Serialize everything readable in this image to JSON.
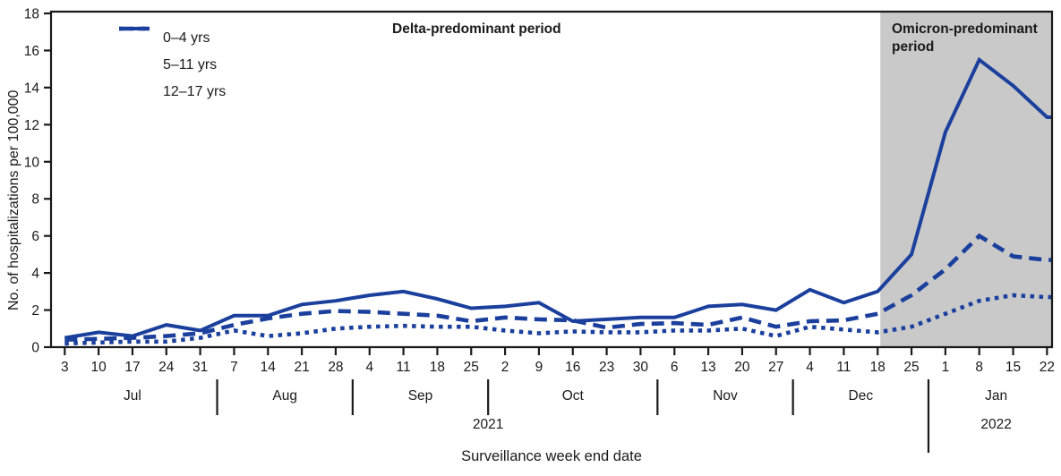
{
  "figure": {
    "y_axis_title": "No. of hospitalizations per 100,000",
    "x_axis_title": "Surveillance week end date",
    "annotations": {
      "delta": "Delta-predominant period",
      "omicron": "Omicron-predominant period"
    },
    "colors": {
      "line_blue": "#1b3f9c",
      "omicron_shade": "#c9c9c9",
      "axis_black": "#1a1a1a",
      "background": "#ffffff"
    }
  },
  "chart_data": {
    "type": "line",
    "title": "",
    "xlabel": "Surveillance week end date",
    "ylabel": "No. of hospitalizations per 100,000",
    "ylim": [
      0,
      18
    ],
    "y_ticks": [
      0,
      2,
      4,
      6,
      8,
      10,
      12,
      14,
      16,
      18
    ],
    "grid": false,
    "legend_position": "top-left",
    "x_tick_labels": [
      "3",
      "10",
      "17",
      "24",
      "31",
      "7",
      "14",
      "21",
      "28",
      "4",
      "11",
      "18",
      "25",
      "2",
      "9",
      "16",
      "23",
      "30",
      "6",
      "13",
      "20",
      "27",
      "4",
      "11",
      "18",
      "25",
      "1",
      "8",
      "15",
      "22"
    ],
    "months": [
      {
        "label": "Jul",
        "weeks": 5
      },
      {
        "label": "Aug",
        "weeks": 4
      },
      {
        "label": "Sep",
        "weeks": 4
      },
      {
        "label": "Oct",
        "weeks": 5
      },
      {
        "label": "Nov",
        "weeks": 4
      },
      {
        "label": "Dec",
        "weeks": 4
      },
      {
        "label": "Jan",
        "weeks": 4
      }
    ],
    "years": [
      {
        "label": "2021",
        "start_week": 0,
        "end_week": 25
      },
      {
        "label": "2022",
        "start_week": 26,
        "end_week": 29
      }
    ],
    "shaded_period": {
      "label": "Omicron-predominant period",
      "start_week": 24,
      "end": "right-edge"
    },
    "unshaded_period_label": "Delta-predominant period",
    "series": [
      {
        "name": "0–4 yrs",
        "style": "solid",
        "values": [
          0.5,
          0.8,
          0.6,
          1.2,
          0.9,
          1.7,
          1.7,
          2.3,
          2.5,
          2.8,
          3.0,
          2.6,
          2.1,
          2.2,
          2.4,
          1.4,
          1.5,
          1.6,
          1.6,
          2.2,
          2.3,
          2.0,
          3.1,
          2.4,
          3.0,
          5.0,
          11.6,
          15.5,
          14.1,
          12.4
        ]
      },
      {
        "name": "5–11 yrs",
        "style": "dotted",
        "values": [
          0.2,
          0.25,
          0.3,
          0.3,
          0.5,
          0.9,
          0.6,
          0.75,
          1.0,
          1.1,
          1.15,
          1.1,
          1.1,
          0.9,
          0.75,
          0.85,
          0.8,
          0.8,
          0.9,
          0.9,
          1.0,
          0.6,
          1.1,
          0.95,
          0.8,
          1.1,
          1.8,
          2.5,
          2.8,
          2.7
        ]
      },
      {
        "name": "12–17 yrs",
        "style": "dashed",
        "values": [
          0.4,
          0.45,
          0.5,
          0.6,
          0.75,
          1.2,
          1.55,
          1.8,
          1.95,
          1.9,
          1.8,
          1.7,
          1.4,
          1.6,
          1.5,
          1.45,
          1.05,
          1.25,
          1.3,
          1.2,
          1.6,
          1.1,
          1.4,
          1.45,
          1.8,
          2.8,
          4.2,
          6.0,
          4.9,
          4.7
        ]
      }
    ]
  }
}
